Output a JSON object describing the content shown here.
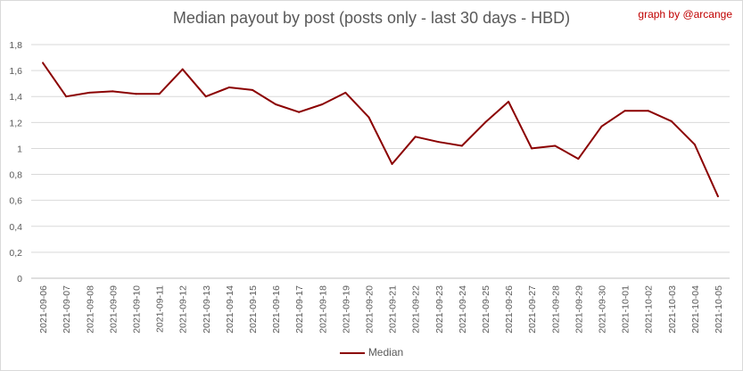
{
  "chart_data": {
    "type": "line",
    "title": "Median payout by post (posts only - last 30 days - HBD)",
    "credit": "graph by @arcange",
    "ylim": [
      0,
      1.8
    ],
    "yticks": [
      "0",
      "0,2",
      "0,4",
      "0,6",
      "0,8",
      "1",
      "1,2",
      "1,4",
      "1,6",
      "1,8"
    ],
    "categories": [
      "2021-09-06",
      "2021-09-07",
      "2021-09-08",
      "2021-09-09",
      "2021-09-10",
      "2021-09-11",
      "2021-09-12",
      "2021-09-13",
      "2021-09-14",
      "2021-09-15",
      "2021-09-16",
      "2021-09-17",
      "2021-09-18",
      "2021-09-19",
      "2021-09-20",
      "2021-09-21",
      "2021-09-22",
      "2021-09-23",
      "2021-09-24",
      "2021-09-25",
      "2021-09-26",
      "2021-09-27",
      "2021-09-28",
      "2021-09-29",
      "2021-09-30",
      "2021-10-01",
      "2021-10-02",
      "2021-10-03",
      "2021-10-04",
      "2021-10-05"
    ],
    "series": [
      {
        "name": "Median",
        "color": "#8b0000",
        "values": [
          1.66,
          1.4,
          1.43,
          1.44,
          1.42,
          1.42,
          1.61,
          1.4,
          1.47,
          1.45,
          1.34,
          1.28,
          1.34,
          1.43,
          1.24,
          0.88,
          1.09,
          1.05,
          1.02,
          1.2,
          1.36,
          1.0,
          1.02,
          0.92,
          1.17,
          1.29,
          1.29,
          1.21,
          1.03,
          0.63
        ]
      }
    ],
    "grid": true,
    "legend_position": "bottom"
  }
}
